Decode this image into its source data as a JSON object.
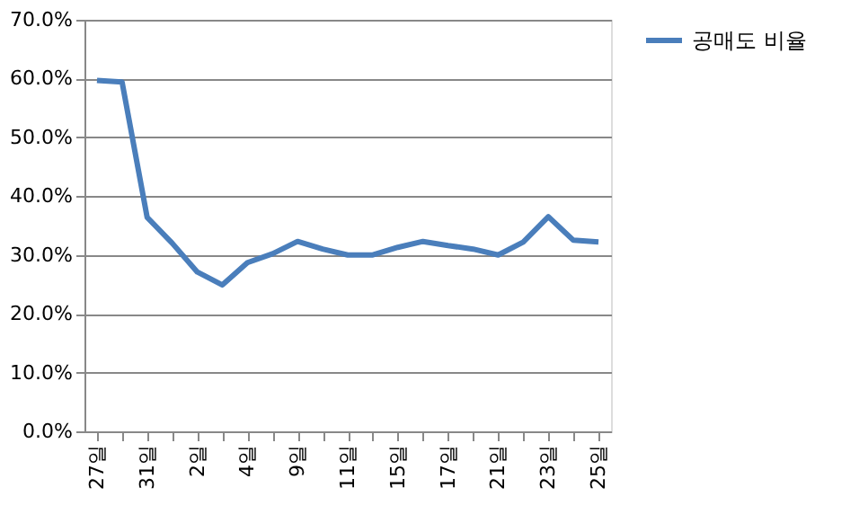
{
  "chart_data": {
    "type": "line",
    "categories": [
      "27일",
      null,
      "31일",
      null,
      "2일",
      null,
      "4일",
      null,
      "9일",
      null,
      "11일",
      null,
      "15일",
      null,
      "17일",
      null,
      "21일",
      null,
      "23일",
      null,
      "25일"
    ],
    "series": [
      {
        "name": "공매도 비율",
        "color": "#4a7ebb",
        "values": [
          59.7,
          59.4,
          36.4,
          32.0,
          27.1,
          24.9,
          28.7,
          30.2,
          32.3,
          31.0,
          30.0,
          30.0,
          31.3,
          32.3,
          31.6,
          31.0,
          30.0,
          32.2,
          36.5,
          32.5,
          32.2
        ]
      }
    ],
    "ylim": [
      0,
      70
    ],
    "yticks": [
      {
        "value": 0,
        "label": "0.0%"
      },
      {
        "value": 10,
        "label": "10.0%"
      },
      {
        "value": 20,
        "label": "20.0%"
      },
      {
        "value": 30,
        "label": "30.0%"
      },
      {
        "value": 40,
        "label": "40.0%"
      },
      {
        "value": 50,
        "label": "50.0%"
      },
      {
        "value": 60,
        "label": "60.0%"
      },
      {
        "value": 70,
        "label": "70.0%"
      }
    ],
    "grid": "y",
    "legend": "right",
    "marker": "none",
    "line_style": "solid"
  }
}
